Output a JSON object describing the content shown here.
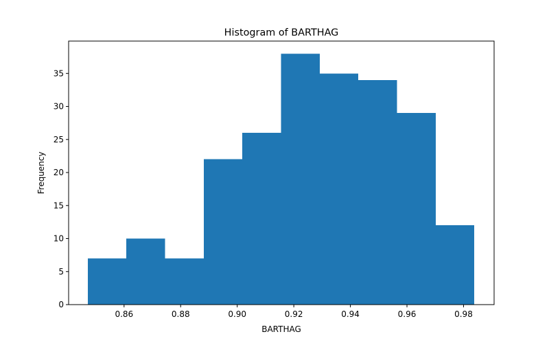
{
  "chart_data": {
    "type": "bar",
    "title": "Histogram of BARTHAG",
    "xlabel": "BARTHAG",
    "ylabel": "Frequency",
    "xlim": [
      0.8404,
      0.9908
    ],
    "ylim": [
      0,
      39.9
    ],
    "bins": [
      {
        "start": 0.8472,
        "end": 0.8608,
        "count": 7
      },
      {
        "start": 0.8608,
        "end": 0.8745,
        "count": 10
      },
      {
        "start": 0.8745,
        "end": 0.8882,
        "count": 7
      },
      {
        "start": 0.8882,
        "end": 0.9018,
        "count": 22
      },
      {
        "start": 0.9018,
        "end": 0.9155,
        "count": 26
      },
      {
        "start": 0.9155,
        "end": 0.9292,
        "count": 38
      },
      {
        "start": 0.9292,
        "end": 0.9428,
        "count": 35
      },
      {
        "start": 0.9428,
        "end": 0.9565,
        "count": 34
      },
      {
        "start": 0.9565,
        "end": 0.9702,
        "count": 29
      },
      {
        "start": 0.9702,
        "end": 0.9838,
        "count": 12
      }
    ],
    "x_ticks": [
      0.86,
      0.88,
      0.9,
      0.92,
      0.94,
      0.96,
      0.98
    ],
    "x_tick_labels": [
      "0.86",
      "0.88",
      "0.90",
      "0.92",
      "0.94",
      "0.96",
      "0.98"
    ],
    "y_ticks": [
      0,
      5,
      10,
      15,
      20,
      25,
      30,
      35
    ],
    "y_tick_labels": [
      "0",
      "5",
      "10",
      "15",
      "20",
      "25",
      "30",
      "35"
    ],
    "bar_color": "#1f77b4",
    "grid": false,
    "legend": "none"
  }
}
